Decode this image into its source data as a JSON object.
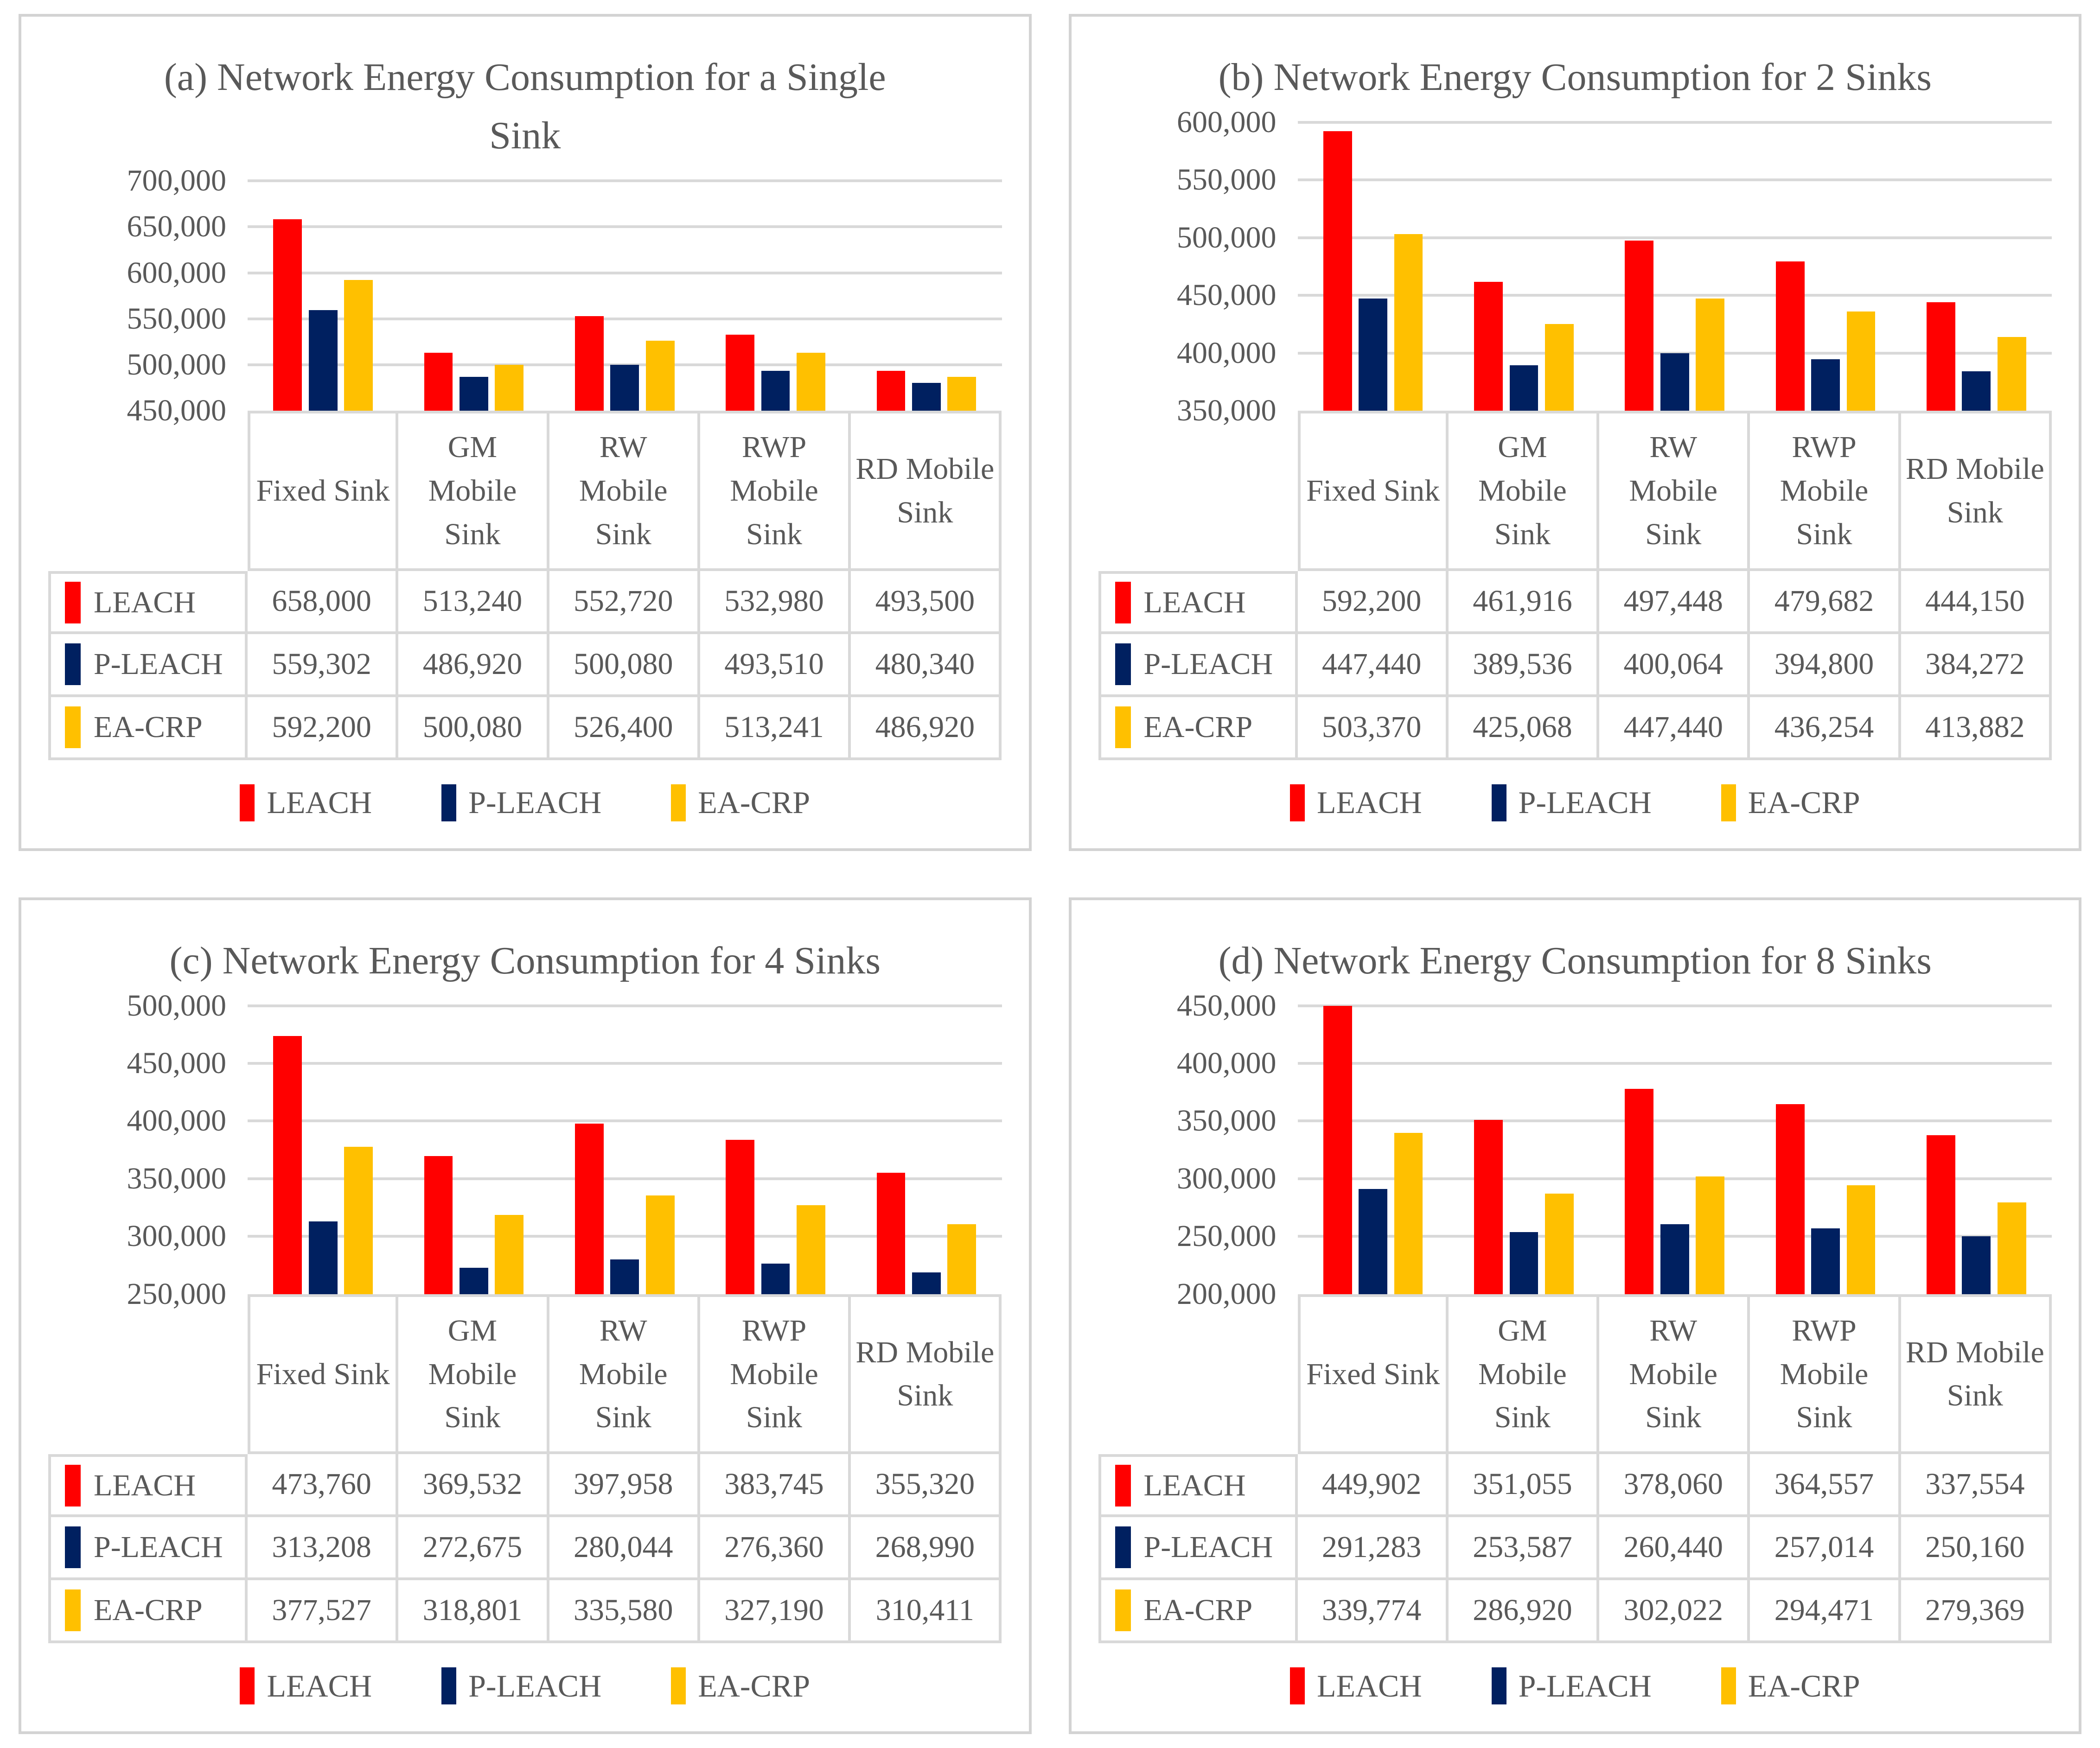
{
  "figure": {
    "background": "#FFFFFF",
    "panel_border_color": "#D3D3D3",
    "grid_color": "#D9D9D9",
    "table_border_color": "#D9D9D9",
    "text_color": "#595959"
  },
  "series_names": [
    "LEACH",
    "P-LEACH",
    "EA-CRP"
  ],
  "series_colors": {
    "LEACH": "#FF0000",
    "P-LEACH": "#002060",
    "EA-CRP": "#FFC000"
  },
  "categories": [
    "Fixed Sink",
    "GM Mobile Sink",
    "RW Mobile Sink",
    "RWP Mobile Sink",
    "RD Mobile Sink"
  ],
  "chart_data": [
    {
      "id": "a",
      "type": "bar",
      "title": "(a) Network Energy Consumption for a Single\nSink",
      "categories": [
        "Fixed Sink",
        "GM Mobile Sink",
        "RW Mobile Sink",
        "RWP Mobile Sink",
        "RD Mobile Sink"
      ],
      "series": [
        {
          "name": "LEACH",
          "color": "#FF0000",
          "values": [
            658000,
            513240,
            552720,
            532980,
            493500
          ],
          "display": [
            "658,000",
            "513,240",
            "552,720",
            "532,980",
            "493,500"
          ]
        },
        {
          "name": "P-LEACH",
          "color": "#002060",
          "values": [
            559302,
            486920,
            500080,
            493510,
            480340
          ],
          "display": [
            "559,302",
            "486,920",
            "500,080",
            "493,510",
            "480,340"
          ]
        },
        {
          "name": "EA-CRP",
          "color": "#FFC000",
          "values": [
            592200,
            500080,
            526400,
            513241,
            486920
          ],
          "display": [
            "592,200",
            "500,080",
            "526,400",
            "513,241",
            "486,920"
          ]
        }
      ],
      "ylim": [
        450000,
        700000
      ],
      "ytick_step": 50000,
      "yticks": [
        "700,000",
        "650,000",
        "600,000",
        "550,000",
        "500,000",
        "450,000"
      ],
      "grid": true,
      "legend_position": "bottom"
    },
    {
      "id": "b",
      "type": "bar",
      "title": "(b) Network Energy Consumption for 2 Sinks",
      "categories": [
        "Fixed Sink",
        "GM Mobile Sink",
        "RW Mobile Sink",
        "RWP Mobile Sink",
        "RD Mobile Sink"
      ],
      "series": [
        {
          "name": "LEACH",
          "color": "#FF0000",
          "values": [
            592200,
            461916,
            497448,
            479682,
            444150
          ],
          "display": [
            "592,200",
            "461,916",
            "497,448",
            "479,682",
            "444,150"
          ]
        },
        {
          "name": "P-LEACH",
          "color": "#002060",
          "values": [
            447440,
            389536,
            400064,
            394800,
            384272
          ],
          "display": [
            "447,440",
            "389,536",
            "400,064",
            "394,800",
            "384,272"
          ]
        },
        {
          "name": "EA-CRP",
          "color": "#FFC000",
          "values": [
            503370,
            425068,
            447440,
            436254,
            413882
          ],
          "display": [
            "503,370",
            "425,068",
            "447,440",
            "436,254",
            "413,882"
          ]
        }
      ],
      "ylim": [
        350000,
        600000
      ],
      "ytick_step": 50000,
      "yticks": [
        "600,000",
        "550,000",
        "500,000",
        "450,000",
        "400,000",
        "350,000"
      ],
      "grid": true,
      "legend_position": "bottom"
    },
    {
      "id": "c",
      "type": "bar",
      "title": "(c) Network Energy Consumption for 4 Sinks",
      "categories": [
        "Fixed Sink",
        "GM Mobile Sink",
        "RW Mobile Sink",
        "RWP Mobile Sink",
        "RD Mobile Sink"
      ],
      "series": [
        {
          "name": "LEACH",
          "color": "#FF0000",
          "values": [
            473760,
            369532,
            397958,
            383745,
            355320
          ],
          "display": [
            "473,760",
            "369,532",
            "397,958",
            "383,745",
            "355,320"
          ]
        },
        {
          "name": "P-LEACH",
          "color": "#002060",
          "values": [
            313208,
            272675,
            280044,
            276360,
            268990
          ],
          "display": [
            "313,208",
            "272,675",
            "280,044",
            "276,360",
            "268,990"
          ]
        },
        {
          "name": "EA-CRP",
          "color": "#FFC000",
          "values": [
            377527,
            318801,
            335580,
            327190,
            310411
          ],
          "display": [
            "377,527",
            "318,801",
            "335,580",
            "327,190",
            "310,411"
          ]
        }
      ],
      "ylim": [
        250000,
        500000
      ],
      "ytick_step": 50000,
      "yticks": [
        "500,000",
        "450,000",
        "400,000",
        "350,000",
        "300,000",
        "250,000"
      ],
      "grid": true,
      "legend_position": "bottom"
    },
    {
      "id": "d",
      "type": "bar",
      "title": "(d) Network Energy Consumption for 8 Sinks",
      "categories": [
        "Fixed Sink",
        "GM Mobile Sink",
        "RW Mobile Sink",
        "RWP Mobile Sink",
        "RD Mobile Sink"
      ],
      "series": [
        {
          "name": "LEACH",
          "color": "#FF0000",
          "values": [
            449902,
            351055,
            378060,
            364557,
            337554
          ],
          "display": [
            "449,902",
            "351,055",
            "378,060",
            "364,557",
            "337,554"
          ]
        },
        {
          "name": "P-LEACH",
          "color": "#002060",
          "values": [
            291283,
            253587,
            260440,
            257014,
            250160
          ],
          "display": [
            "291,283",
            "253,587",
            "260,440",
            "257,014",
            "250,160"
          ]
        },
        {
          "name": "EA-CRP",
          "color": "#FFC000",
          "values": [
            339774,
            286920,
            302022,
            294471,
            279369
          ],
          "display": [
            "339,774",
            "286,920",
            "302,022",
            "294,471",
            "279,369"
          ]
        }
      ],
      "ylim": [
        200000,
        450000
      ],
      "ytick_step": 50000,
      "yticks": [
        "450,000",
        "400,000",
        "350,000",
        "300,000",
        "250,000",
        "200,000"
      ],
      "grid": true,
      "legend_position": "bottom"
    }
  ]
}
